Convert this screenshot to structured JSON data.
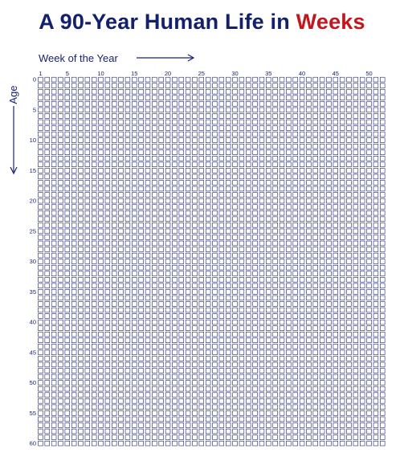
{
  "title": {
    "main": "A 90-Year Human Life in ",
    "accent": "Weeks",
    "main_color": "#13206b",
    "accent_color": "#c4161c"
  },
  "x_axis": {
    "label": "Week of the Year",
    "ticks": [
      1,
      5,
      10,
      15,
      20,
      25,
      30,
      35,
      40,
      45,
      50
    ]
  },
  "y_axis": {
    "label": "Age",
    "ticks": [
      0,
      5,
      10,
      15,
      20,
      25,
      30,
      35,
      40,
      45,
      50,
      55,
      60
    ]
  },
  "grid": {
    "weeks_per_row": 52,
    "visible_years": 61,
    "box_color": "#1a2370"
  }
}
